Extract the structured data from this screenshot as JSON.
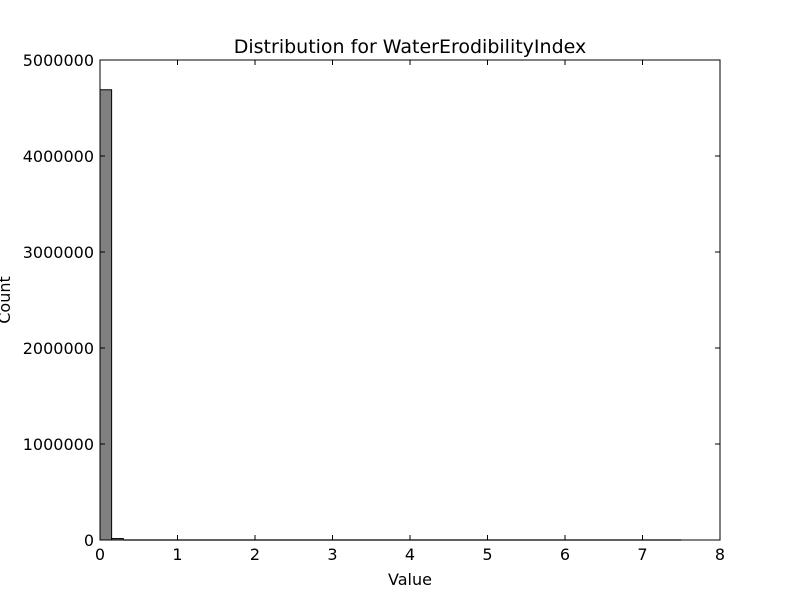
{
  "chart_data": {
    "type": "bar",
    "title": "Distribution for WaterErodibilityIndex",
    "xlabel": "Value",
    "ylabel": "Count",
    "xlim": [
      0,
      8
    ],
    "ylim": [
      0,
      5000000
    ],
    "x_ticks": [
      "0",
      "1",
      "2",
      "3",
      "4",
      "5",
      "6",
      "7",
      "8"
    ],
    "y_ticks": [
      "0",
      "1000000",
      "2000000",
      "3000000",
      "4000000",
      "5000000"
    ],
    "bin_width": 0.15,
    "bins": [
      {
        "x0": 0.0,
        "x1": 0.15,
        "count": 4690000
      },
      {
        "x0": 0.15,
        "x1": 0.3,
        "count": 15000
      },
      {
        "x0": 0.3,
        "x1": 7.5,
        "count": 0
      }
    ],
    "bar_color": "#808080",
    "edge_color": "#000000",
    "grid": false,
    "legend": "none"
  }
}
